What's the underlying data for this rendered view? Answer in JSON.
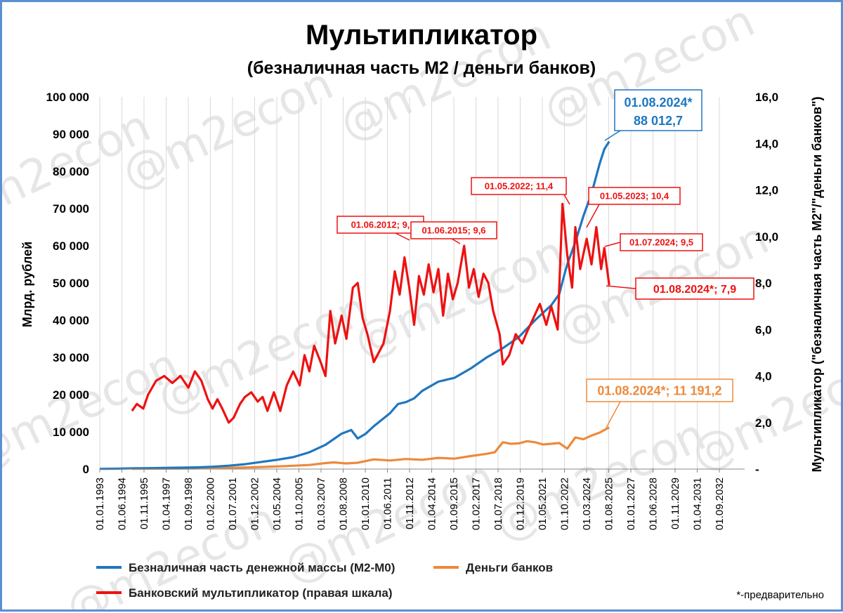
{
  "chart_data": {
    "type": "line",
    "title": "Мультипликатор",
    "subtitle": "(безналичная часть М2 / деньги банков)",
    "ylabel_left": "Млрд. рублей",
    "ylabel_right": "Мультипликатор (\"безналичная часть М2\"/\"деньги банков\")",
    "ylim_left": [
      0,
      100000
    ],
    "ylim_right": [
      0,
      16
    ],
    "left_ticks": [
      "0",
      "10 000",
      "20 000",
      "30 000",
      "40 000",
      "50 000",
      "60 000",
      "70 000",
      "80 000",
      "90 000",
      "100 000"
    ],
    "right_ticks": [
      "-",
      "2,0",
      "4,0",
      "6,0",
      "8,0",
      "10,0",
      "12,0",
      "14,0",
      "16,0"
    ],
    "x_ticks": [
      "01.01.1993",
      "01.06.1994",
      "01.11.1995",
      "01.04.1997",
      "01.09.1998",
      "01.02.2000",
      "01.07.2001",
      "01.12.2002",
      "01.05.2004",
      "01.10.2005",
      "01.03.2007",
      "01.08.2008",
      "01.01.2010",
      "01.06.2011",
      "01.11.2012",
      "01.04.2014",
      "01.09.2015",
      "01.02.2017",
      "01.07.2018",
      "01.12.2019",
      "01.05.2021",
      "01.10.2022",
      "01.03.2024",
      "01.08.2025",
      "01.01.2027",
      "01.06.2028",
      "01.11.2029",
      "01.04.2031",
      "01.09.2032"
    ],
    "grid": "vertical",
    "legend_placement": "bottom",
    "series": [
      {
        "name": "Безналичная часть денежной массы (М2-М0)",
        "axis": "left",
        "color": "#1f77c0",
        "points": [
          [
            1993.0,
            50
          ],
          [
            1994.0,
            100
          ],
          [
            1995.0,
            180
          ],
          [
            1996.0,
            240
          ],
          [
            1997.0,
            300
          ],
          [
            1998.0,
            380
          ],
          [
            1999.0,
            450
          ],
          [
            2000.0,
            620
          ],
          [
            2001.0,
            900
          ],
          [
            2002.0,
            1300
          ],
          [
            2003.0,
            1900
          ],
          [
            2004.0,
            2500
          ],
          [
            2005.0,
            3200
          ],
          [
            2006.0,
            4500
          ],
          [
            2007.0,
            6500
          ],
          [
            2008.0,
            9500
          ],
          [
            2008.6,
            10500
          ],
          [
            2009.0,
            8200
          ],
          [
            2009.5,
            9500
          ],
          [
            2010.0,
            11500
          ],
          [
            2011.0,
            15000
          ],
          [
            2011.5,
            17500
          ],
          [
            2012.0,
            18000
          ],
          [
            2012.5,
            19000
          ],
          [
            2013.0,
            21000
          ],
          [
            2014.0,
            23500
          ],
          [
            2015.0,
            24500
          ],
          [
            2016.0,
            27000
          ],
          [
            2017.0,
            30000
          ],
          [
            2017.6,
            31500
          ],
          [
            2018.0,
            32500
          ],
          [
            2019.0,
            35500
          ],
          [
            2020.0,
            40000
          ],
          [
            2021.0,
            44000
          ],
          [
            2021.5,
            47000
          ],
          [
            2021.8,
            52000
          ],
          [
            2022.0,
            55000
          ],
          [
            2022.5,
            61000
          ],
          [
            2023.0,
            68000
          ],
          [
            2023.5,
            74000
          ],
          [
            2024.0,
            82000
          ],
          [
            2024.3,
            86000
          ],
          [
            2024.6,
            88012.7
          ]
        ]
      },
      {
        "name": "Деньги банков",
        "axis": "left",
        "color": "#ed8a3c",
        "points": [
          [
            1995.0,
            60
          ],
          [
            1997.0,
            120
          ],
          [
            1999.0,
            180
          ],
          [
            2001.0,
            300
          ],
          [
            2003.0,
            550
          ],
          [
            2004.5,
            800
          ],
          [
            2006.0,
            1100
          ],
          [
            2007.0,
            1600
          ],
          [
            2007.5,
            1800
          ],
          [
            2008.3,
            1500
          ],
          [
            2009.0,
            1700
          ],
          [
            2010.0,
            2600
          ],
          [
            2011.0,
            2300
          ],
          [
            2012.0,
            2700
          ],
          [
            2013.0,
            2500
          ],
          [
            2014.0,
            3000
          ],
          [
            2015.0,
            2800
          ],
          [
            2016.0,
            3500
          ],
          [
            2017.0,
            4100
          ],
          [
            2017.5,
            4500
          ],
          [
            2018.0,
            7200
          ],
          [
            2018.5,
            6800
          ],
          [
            2019.0,
            6900
          ],
          [
            2019.5,
            7500
          ],
          [
            2020.0,
            7200
          ],
          [
            2020.5,
            6600
          ],
          [
            2021.0,
            6800
          ],
          [
            2021.5,
            7000
          ],
          [
            2022.0,
            5500
          ],
          [
            2022.5,
            8500
          ],
          [
            2023.0,
            8000
          ],
          [
            2023.5,
            9000
          ],
          [
            2024.0,
            9800
          ],
          [
            2024.3,
            10500
          ],
          [
            2024.6,
            11191.2
          ]
        ]
      },
      {
        "name": "Банковский мультипликатор (правая шкала)",
        "axis": "right",
        "color": "#ee1111",
        "points": [
          [
            1995.0,
            2.5
          ],
          [
            1995.3,
            2.8
          ],
          [
            1995.7,
            2.6
          ],
          [
            1996.0,
            3.2
          ],
          [
            1996.5,
            3.8
          ],
          [
            1997.0,
            4.0
          ],
          [
            1997.5,
            3.7
          ],
          [
            1998.0,
            4.0
          ],
          [
            1998.5,
            3.5
          ],
          [
            1998.9,
            4.2
          ],
          [
            1999.3,
            3.8
          ],
          [
            1999.7,
            3.0
          ],
          [
            2000.0,
            2.6
          ],
          [
            2000.3,
            3.0
          ],
          [
            2000.6,
            2.6
          ],
          [
            2001.0,
            2.0
          ],
          [
            2001.3,
            2.2
          ],
          [
            2001.7,
            2.8
          ],
          [
            2002.0,
            3.1
          ],
          [
            2002.4,
            3.3
          ],
          [
            2002.8,
            2.9
          ],
          [
            2003.1,
            3.1
          ],
          [
            2003.4,
            2.5
          ],
          [
            2003.8,
            3.3
          ],
          [
            2004.2,
            2.5
          ],
          [
            2004.6,
            3.6
          ],
          [
            2005.0,
            4.2
          ],
          [
            2005.4,
            3.6
          ],
          [
            2005.7,
            4.9
          ],
          [
            2006.0,
            4.2
          ],
          [
            2006.3,
            5.3
          ],
          [
            2006.7,
            4.6
          ],
          [
            2007.0,
            4.0
          ],
          [
            2007.3,
            6.8
          ],
          [
            2007.6,
            5.4
          ],
          [
            2008.0,
            6.6
          ],
          [
            2008.3,
            5.6
          ],
          [
            2008.7,
            7.8
          ],
          [
            2009.0,
            8.0
          ],
          [
            2009.3,
            6.5
          ],
          [
            2009.6,
            5.8
          ],
          [
            2010.0,
            4.6
          ],
          [
            2010.3,
            5.0
          ],
          [
            2010.6,
            5.4
          ],
          [
            2011.0,
            6.8
          ],
          [
            2011.3,
            8.5
          ],
          [
            2011.6,
            7.5
          ],
          [
            2011.9,
            9.1
          ],
          [
            2012.2,
            7.8
          ],
          [
            2012.5,
            6.2
          ],
          [
            2012.8,
            8.3
          ],
          [
            2013.1,
            7.5
          ],
          [
            2013.4,
            8.8
          ],
          [
            2013.7,
            7.6
          ],
          [
            2014.0,
            8.6
          ],
          [
            2014.3,
            6.6
          ],
          [
            2014.6,
            8.4
          ],
          [
            2014.9,
            7.3
          ],
          [
            2015.2,
            8.0
          ],
          [
            2015.6,
            9.6
          ],
          [
            2015.9,
            7.8
          ],
          [
            2016.2,
            8.6
          ],
          [
            2016.5,
            7.4
          ],
          [
            2016.8,
            8.4
          ],
          [
            2017.1,
            8.0
          ],
          [
            2017.4,
            6.8
          ],
          [
            2017.8,
            5.8
          ],
          [
            2018.0,
            4.5
          ],
          [
            2018.4,
            4.9
          ],
          [
            2018.8,
            5.8
          ],
          [
            2019.2,
            5.4
          ],
          [
            2019.5,
            5.9
          ],
          [
            2019.9,
            6.5
          ],
          [
            2020.3,
            7.1
          ],
          [
            2020.7,
            6.2
          ],
          [
            2021.0,
            7.0
          ],
          [
            2021.4,
            6.0
          ],
          [
            2021.7,
            11.4
          ],
          [
            2022.0,
            9.2
          ],
          [
            2022.3,
            7.8
          ],
          [
            2022.5,
            10.4
          ],
          [
            2022.8,
            8.6
          ],
          [
            2023.2,
            9.9
          ],
          [
            2023.5,
            8.8
          ],
          [
            2023.8,
            10.4
          ],
          [
            2024.1,
            8.6
          ],
          [
            2024.3,
            9.5
          ],
          [
            2024.6,
            7.9
          ]
        ]
      }
    ],
    "annotations": [
      {
        "id": "blue_last",
        "lines": [
          "01.08.2024*",
          "88 012,7"
        ],
        "color": "#1f77c0"
      },
      {
        "id": "orange_last",
        "text": "01.08.2024*;  11 191,2",
        "color": "#ed8a3c"
      },
      {
        "id": "red_2012",
        "text": "01.06.2012;  9,",
        "color": "#ee1111"
      },
      {
        "id": "red_2015",
        "text": "01.06.2015;  9,6",
        "color": "#ee1111"
      },
      {
        "id": "red_2022",
        "text": "01.05.2022;  11,4",
        "color": "#ee1111"
      },
      {
        "id": "red_2023",
        "text": "01.05.2023;  10,4",
        "color": "#ee1111"
      },
      {
        "id": "red_2024_07",
        "text": "01.07.2024;  9,5",
        "color": "#ee1111"
      },
      {
        "id": "red_2024_08",
        "text": "01.08.2024*;  7,9",
        "color": "#ee1111"
      }
    ],
    "footnote": "*-предварительно",
    "watermark": "@m2econ"
  }
}
